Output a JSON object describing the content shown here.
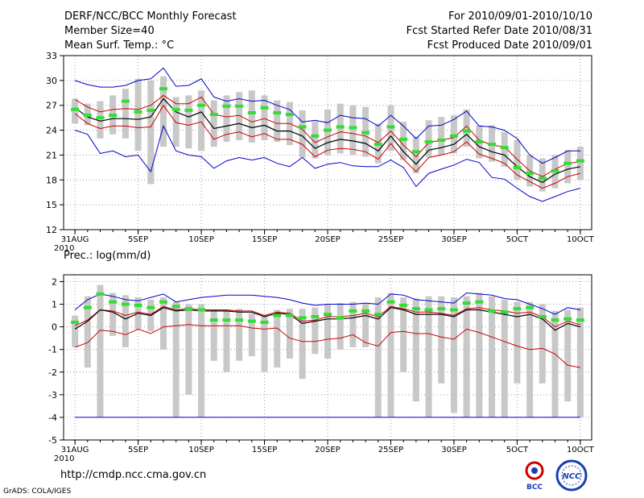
{
  "header": {
    "title": "DERF/NCC/BCC Monthly Forecast",
    "member_size": "Member Size=40",
    "variable": "Mean Surf. Temp.: °C",
    "forecast_period": "For 2010/09/01-2010/10/10",
    "started_refer": "Fcst Started Refer Date 2010/08/31",
    "produced": "Fcst Produced Date 2010/09/01"
  },
  "footer": {
    "url": "http://cmdp.ncc.cma.gov.cn",
    "grads": "GrADS: COLA/IGES",
    "logo_left_text": "BCC",
    "logo_right_text": "NCC"
  },
  "colors": {
    "max_min": "#0000cc",
    "inner": "#cc0000",
    "mean": "#000000",
    "median": "#33dd33",
    "box": "#c8c8c8",
    "grid": "#9a9a9a"
  },
  "chart_data": [
    {
      "type": "line",
      "title": "Mean Surf. Temp.: °C",
      "xlabel": "",
      "ylabel": "°C",
      "ylim": [
        12,
        33
      ],
      "yticks": [
        12,
        15,
        18,
        21,
        24,
        27,
        30,
        33
      ],
      "x": [
        0,
        1,
        2,
        3,
        4,
        5,
        6,
        7,
        8,
        9,
        10,
        11,
        12,
        13,
        14,
        15,
        16,
        17,
        18,
        19,
        20,
        21,
        22,
        23,
        24,
        25,
        26,
        27,
        28,
        29,
        30,
        31,
        32,
        33,
        34,
        35,
        36,
        37,
        38,
        39,
        40
      ],
      "xticks": [
        {
          "x": 0,
          "label": "31AUG"
        },
        {
          "x": 5,
          "label": "5SEP"
        },
        {
          "x": 10,
          "label": "10SEP"
        },
        {
          "x": 15,
          "label": "15SEP"
        },
        {
          "x": 20,
          "label": "20SEP"
        },
        {
          "x": 25,
          "label": "25SEP"
        },
        {
          "x": 30,
          "label": "30SEP"
        },
        {
          "x": 35,
          "label": "5OCT"
        },
        {
          "x": 40,
          "label": "10OCT"
        }
      ],
      "x_sublabel": "2010",
      "grid": true,
      "series": [
        {
          "name": "max",
          "role": "max",
          "values": [
            30.0,
            29.5,
            29.2,
            29.2,
            29.4,
            30.0,
            30.2,
            31.5,
            29.3,
            29.4,
            30.2,
            28.0,
            27.5,
            27.8,
            27.5,
            27.6,
            27.0,
            26.5,
            25.0,
            25.2,
            24.9,
            25.8,
            25.5,
            25.4,
            24.5,
            25.8,
            24.5,
            23.0,
            24.5,
            24.6,
            25.3,
            26.3,
            24.5,
            24.4,
            24.0,
            23.0,
            21.0,
            20.0,
            20.7,
            21.5,
            21.5
          ]
        },
        {
          "name": "upper",
          "role": "inner",
          "values": [
            27.7,
            26.8,
            26.2,
            26.5,
            26.6,
            26.5,
            27.0,
            28.2,
            27.2,
            27.2,
            28.0,
            25.9,
            25.6,
            25.8,
            25.0,
            25.4,
            24.8,
            24.8,
            24.1,
            22.5,
            23.2,
            23.8,
            23.6,
            23.3,
            22.5,
            23.9,
            22.2,
            20.8,
            22.5,
            22.8,
            23.1,
            24.5,
            22.8,
            22.2,
            22.0,
            20.5,
            19.1,
            18.4,
            19.3,
            20.0,
            20.2
          ]
        },
        {
          "name": "mean",
          "role": "mean",
          "values": [
            26.7,
            25.6,
            25.1,
            25.4,
            25.4,
            25.3,
            25.6,
            27.8,
            26.2,
            25.6,
            26.2,
            24.2,
            24.5,
            24.8,
            24.3,
            24.6,
            23.9,
            23.9,
            23.3,
            21.8,
            22.5,
            22.9,
            22.7,
            22.4,
            21.5,
            23.3,
            21.4,
            19.9,
            21.6,
            21.9,
            22.3,
            23.5,
            22.0,
            21.4,
            21.0,
            19.6,
            18.4,
            17.7,
            18.7,
            19.3,
            19.6
          ]
        },
        {
          "name": "lower",
          "role": "inner",
          "values": [
            26.0,
            24.8,
            24.2,
            24.5,
            24.5,
            24.3,
            24.4,
            27.0,
            24.9,
            24.6,
            25.0,
            22.9,
            23.5,
            23.8,
            23.2,
            23.6,
            22.9,
            22.9,
            22.3,
            20.8,
            21.6,
            21.8,
            21.7,
            21.4,
            20.5,
            22.4,
            20.5,
            19.0,
            20.7,
            21.0,
            21.4,
            22.6,
            21.1,
            20.6,
            20.0,
            18.6,
            17.8,
            17.0,
            17.6,
            18.4,
            18.8
          ]
        },
        {
          "name": "min",
          "role": "max",
          "values": [
            24.0,
            23.5,
            21.2,
            21.5,
            20.8,
            21.0,
            19.0,
            24.5,
            21.5,
            21.0,
            20.8,
            19.4,
            20.3,
            20.7,
            20.4,
            20.7,
            20.0,
            19.6,
            20.7,
            19.4,
            19.9,
            20.1,
            19.7,
            19.6,
            19.6,
            20.4,
            19.5,
            17.2,
            18.8,
            19.3,
            19.8,
            20.5,
            20.1,
            18.3,
            18.1,
            17.0,
            16.0,
            15.4,
            16.0,
            16.6,
            17.0
          ]
        },
        {
          "name": "median",
          "role": "median",
          "values": [
            26.5,
            25.8,
            25.5,
            25.8,
            27.5,
            26.2,
            26.4,
            29.0,
            26.5,
            26.4,
            27.0,
            25.9,
            26.9,
            26.9,
            26.1,
            26.7,
            26.1,
            25.9,
            24.4,
            23.3,
            24.0,
            24.4,
            24.3,
            23.7,
            22.3,
            24.4,
            22.9,
            21.4,
            22.6,
            22.8,
            23.3,
            23.9,
            22.6,
            22.3,
            21.9,
            19.5,
            18.8,
            18.2,
            19.1,
            20.0,
            20.3
          ]
        },
        {
          "name": "box_top",
          "role": "box",
          "values": [
            27.8,
            27.2,
            27.5,
            28.2,
            29.0,
            30.2,
            30.0,
            30.5,
            28.0,
            28.2,
            28.8,
            27.6,
            28.2,
            28.6,
            28.8,
            28.2,
            27.6,
            27.4,
            26.4,
            25.1,
            26.5,
            27.2,
            27.0,
            26.8,
            24.8,
            27.0,
            25.0,
            23.2,
            25.2,
            25.6,
            25.8,
            26.5,
            24.6,
            24.6,
            23.8,
            22.8,
            21.0,
            20.6,
            21.0,
            21.6,
            22.0
          ]
        },
        {
          "name": "box_bottom",
          "role": "box",
          "values": [
            24.8,
            24.6,
            23.0,
            23.5,
            23.0,
            21.5,
            17.5,
            22.0,
            22.0,
            21.8,
            21.5,
            22.0,
            22.6,
            22.8,
            22.5,
            22.8,
            22.6,
            22.2,
            20.7,
            20.6,
            21.0,
            21.2,
            21.0,
            20.8,
            20.0,
            21.5,
            20.4,
            18.8,
            20.8,
            21.0,
            21.2,
            22.0,
            20.6,
            20.2,
            19.6,
            18.0,
            17.2,
            16.6,
            17.0,
            17.6,
            18.0
          ]
        }
      ]
    },
    {
      "type": "line",
      "title": "Prec.: log(mm/d)",
      "xlabel": "",
      "ylabel": "log(mm/d)",
      "ylim": [
        -5,
        2.3
      ],
      "yticks": [
        -5,
        -4,
        -3,
        -2,
        -1,
        0,
        1,
        2
      ],
      "x": [
        0,
        1,
        2,
        3,
        4,
        5,
        6,
        7,
        8,
        9,
        10,
        11,
        12,
        13,
        14,
        15,
        16,
        17,
        18,
        19,
        20,
        21,
        22,
        23,
        24,
        25,
        26,
        27,
        28,
        29,
        30,
        31,
        32,
        33,
        34,
        35,
        36,
        37,
        38,
        39,
        40
      ],
      "xticks": [
        {
          "x": 0,
          "label": "31AUG"
        },
        {
          "x": 5,
          "label": "5SEP"
        },
        {
          "x": 10,
          "label": "10SEP"
        },
        {
          "x": 15,
          "label": "15SEP"
        },
        {
          "x": 20,
          "label": "20SEP"
        },
        {
          "x": 25,
          "label": "25SEP"
        },
        {
          "x": 30,
          "label": "30SEP"
        },
        {
          "x": 35,
          "label": "5OCT"
        },
        {
          "x": 40,
          "label": "10OCT"
        }
      ],
      "x_sublabel": "2010",
      "grid": true,
      "series": [
        {
          "name": "max",
          "role": "max",
          "values": [
            0.75,
            1.2,
            1.45,
            1.35,
            1.2,
            1.15,
            1.3,
            1.45,
            1.1,
            1.2,
            1.3,
            1.35,
            1.4,
            1.4,
            1.4,
            1.35,
            1.3,
            1.2,
            1.05,
            0.95,
            1.0,
            1.0,
            1.0,
            1.05,
            1.0,
            1.45,
            1.4,
            1.2,
            1.15,
            1.1,
            1.05,
            1.5,
            1.45,
            1.4,
            1.25,
            1.2,
            1.0,
            0.8,
            0.55,
            0.85,
            0.75
          ]
        },
        {
          "name": "upper",
          "role": "inner",
          "values": [
            0.05,
            0.3,
            0.75,
            0.7,
            0.5,
            0.65,
            0.55,
            0.9,
            0.75,
            0.8,
            0.75,
            0.75,
            0.75,
            0.7,
            0.7,
            0.5,
            0.65,
            0.6,
            0.25,
            0.3,
            0.45,
            0.45,
            0.5,
            0.6,
            0.45,
            0.9,
            0.8,
            0.65,
            0.65,
            0.6,
            0.5,
            0.8,
            0.85,
            0.75,
            0.7,
            0.6,
            0.65,
            0.45,
            0.0,
            0.25,
            0.1
          ]
        },
        {
          "name": "mean",
          "role": "mean",
          "values": [
            -0.1,
            0.25,
            0.75,
            0.65,
            0.35,
            0.6,
            0.5,
            0.85,
            0.7,
            0.75,
            0.7,
            0.7,
            0.7,
            0.65,
            0.65,
            0.45,
            0.6,
            0.55,
            0.15,
            0.25,
            0.35,
            0.35,
            0.4,
            0.5,
            0.35,
            0.85,
            0.75,
            0.55,
            0.55,
            0.55,
            0.45,
            0.75,
            0.75,
            0.65,
            0.55,
            0.45,
            0.55,
            0.35,
            -0.15,
            0.15,
            0.0
          ]
        },
        {
          "name": "lower",
          "role": "inner",
          "values": [
            -0.9,
            -0.7,
            -0.15,
            -0.2,
            -0.35,
            -0.1,
            -0.3,
            0.0,
            0.05,
            0.1,
            0.05,
            0.05,
            0.05,
            0.05,
            -0.05,
            -0.1,
            -0.05,
            -0.5,
            -0.65,
            -0.65,
            -0.55,
            -0.5,
            -0.35,
            -0.7,
            -0.85,
            -0.25,
            -0.2,
            -0.3,
            -0.3,
            -0.45,
            -0.55,
            -0.1,
            -0.25,
            -0.45,
            -0.65,
            -0.85,
            -1.0,
            -0.95,
            -1.2,
            -1.7,
            -1.8
          ]
        },
        {
          "name": "min",
          "role": "max",
          "values": [
            -4,
            -4,
            -4,
            -4,
            -4,
            -4,
            -4,
            -4,
            -4,
            -4,
            -4,
            -4,
            -4,
            -4,
            -4,
            -4,
            -4,
            -4,
            -4,
            -4,
            -4,
            -4,
            -4,
            -4,
            -4,
            -4,
            -4,
            -4,
            -4,
            -4,
            -4,
            -4,
            -4,
            -4,
            -4,
            -4,
            -4,
            -4,
            -4,
            -4,
            -4
          ]
        },
        {
          "name": "median",
          "role": "median",
          "values": [
            0.2,
            0.85,
            1.45,
            1.1,
            1.0,
            0.95,
            0.85,
            1.1,
            0.9,
            0.8,
            0.75,
            0.3,
            0.3,
            0.3,
            0.25,
            0.2,
            0.5,
            0.5,
            0.4,
            0.45,
            0.55,
            0.4,
            0.7,
            0.7,
            0.55,
            1.1,
            0.95,
            0.8,
            0.75,
            0.8,
            0.75,
            1.05,
            1.1,
            0.7,
            0.65,
            0.8,
            0.85,
            0.45,
            0.3,
            0.35,
            0.3
          ]
        },
        {
          "name": "box_top",
          "role": "box",
          "values": [
            0.5,
            1.35,
            1.85,
            1.5,
            1.4,
            1.3,
            1.2,
            1.3,
            1.1,
            1.0,
            1.0,
            0.75,
            0.75,
            0.8,
            0.6,
            0.5,
            0.75,
            0.8,
            0.8,
            0.85,
            1.0,
            1.05,
            1.1,
            1.05,
            1.3,
            1.5,
            1.3,
            1.25,
            1.35,
            1.35,
            1.3,
            1.35,
            1.5,
            1.35,
            1.2,
            1.1,
            1.1,
            1.0,
            0.7,
            0.75,
            0.85
          ]
        },
        {
          "name": "box_bottom",
          "role": "box",
          "values": [
            -0.9,
            -1.8,
            -4,
            -0.4,
            -0.9,
            -0.1,
            -0.2,
            -1.0,
            -4,
            -3,
            -4,
            -1.5,
            -2.0,
            -1.5,
            -1.3,
            -2.0,
            -1.8,
            -1.4,
            -2.3,
            -1.2,
            -1.4,
            -1.0,
            -0.9,
            -0.9,
            -4,
            -4,
            -2.0,
            -3.3,
            -4,
            -2.5,
            -3.8,
            -4,
            -4,
            -4,
            -4,
            -2.5,
            -4,
            -2.5,
            -4,
            -3.3,
            -4
          ]
        }
      ]
    }
  ]
}
